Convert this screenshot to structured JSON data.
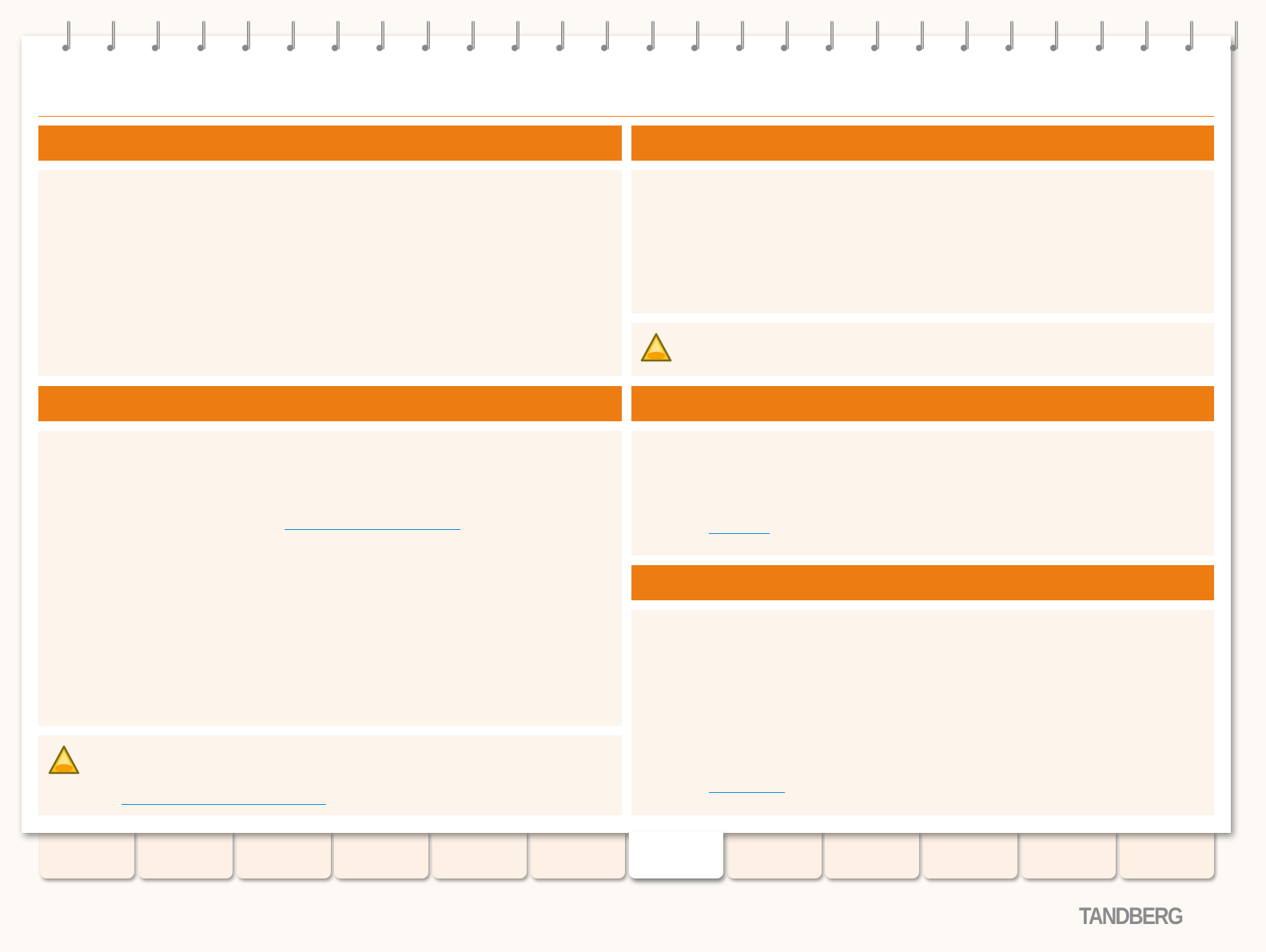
{
  "brand": {
    "logo_text": "TANDBERG"
  },
  "colors": {
    "accent": "#ed7d12",
    "panel": "#fdf4eb",
    "link": "#1a8fd8",
    "background": "#fdf9f4"
  },
  "icons": {
    "warning": "warning-triangle-icon",
    "binding": "spiral-ring"
  },
  "tabs": {
    "count": 12,
    "active_index": 6
  }
}
